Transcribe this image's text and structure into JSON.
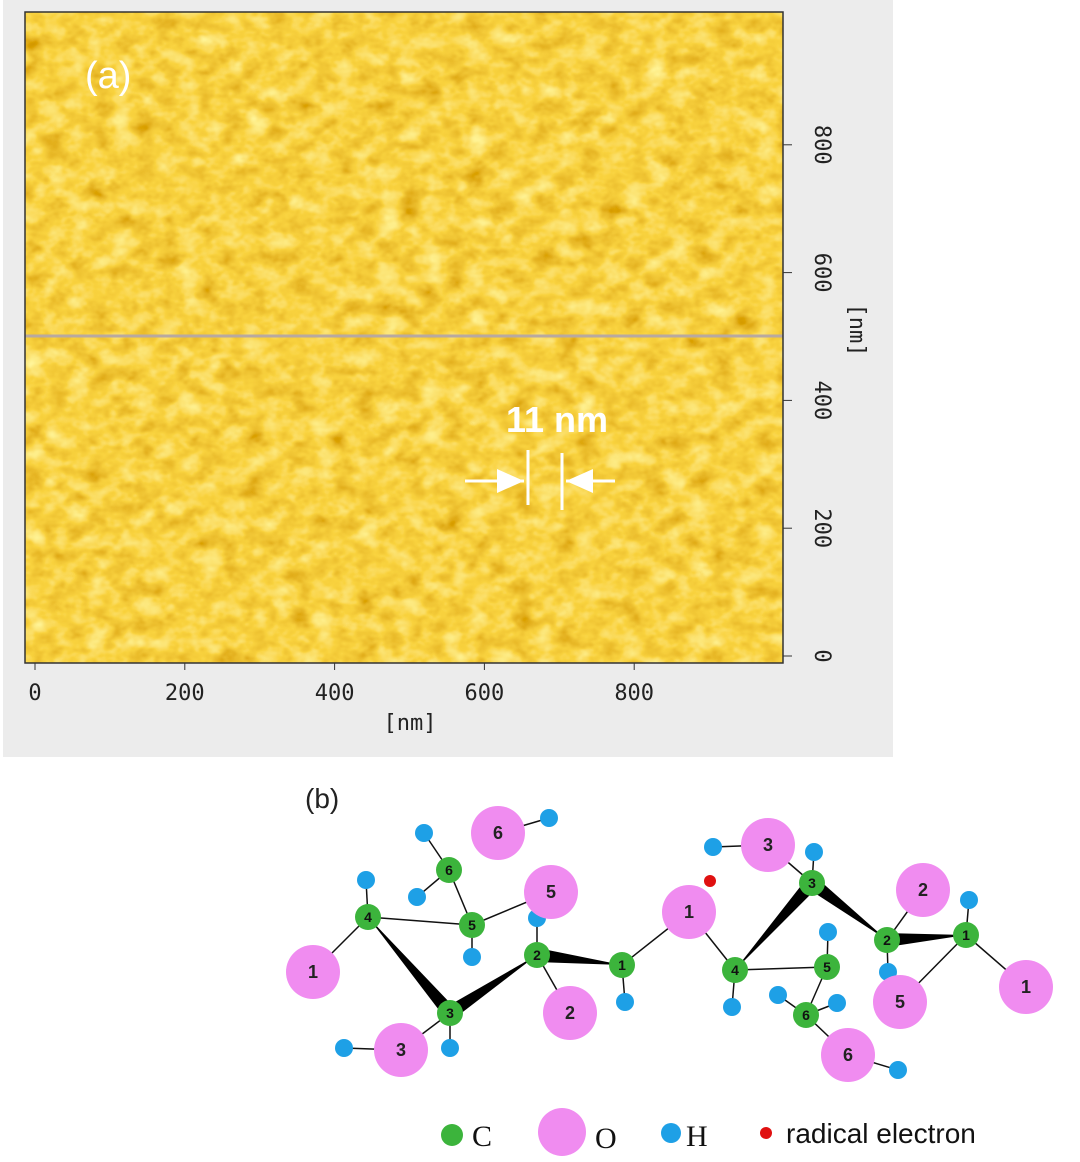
{
  "panel_a": {
    "label": "(a)",
    "x_ticks": [
      0,
      200,
      400,
      600,
      800
    ],
    "y_ticks": [
      0,
      200,
      400,
      600,
      800
    ],
    "x_axis_label": "[nm]",
    "y_axis_label": "[nm]",
    "annotation": "11 nm"
  },
  "panel_b": {
    "label": "(b)",
    "carbon_labels": [
      4,
      6,
      5,
      2,
      3,
      1,
      4,
      5,
      3,
      2,
      1,
      6
    ],
    "oxygen_labels": [
      6,
      5,
      1,
      2,
      3,
      1,
      3,
      2,
      5,
      1,
      6
    ],
    "legend": {
      "carbon": "C",
      "oxygen": "O",
      "hydrogen": "H",
      "radical": "radical electron"
    }
  }
}
